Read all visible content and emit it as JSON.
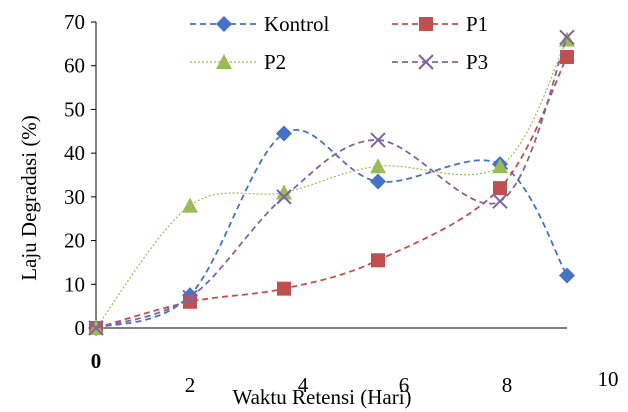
{
  "chart_data": {
    "type": "line",
    "xlabel": "Waktu Retensi (Hari)",
    "ylabel": "Laju Degradasi (%)",
    "ylim": [
      0,
      70
    ],
    "y_ticks": [
      "0",
      "10",
      "20",
      "30",
      "40",
      "50",
      "60",
      "70"
    ],
    "x_origin_label": "0",
    "x_tick_labels": [
      "2",
      "4",
      "6",
      "8",
      "10"
    ],
    "x": [
      0,
      2,
      4,
      6,
      8,
      10
    ],
    "grid": false,
    "legend_position": "top",
    "series": [
      {
        "name": "Kontrol",
        "values": [
          0,
          7.5,
          44.5,
          33.5,
          37.5,
          12
        ],
        "color": "#4472C4",
        "marker": "diamond",
        "dash": "dashed"
      },
      {
        "name": "P1",
        "values": [
          0,
          6,
          9,
          15.5,
          32,
          62
        ],
        "color": "#C0504D",
        "marker": "square",
        "dash": "dashed"
      },
      {
        "name": "P2",
        "values": [
          0,
          28,
          31,
          37,
          37,
          66
        ],
        "color": "#9BBB59",
        "marker": "triangle",
        "dash": "dotted"
      },
      {
        "name": "P3",
        "values": [
          0,
          7,
          30,
          43,
          29,
          66.5
        ],
        "color": "#8064A2",
        "marker": "x",
        "dash": "dashed"
      }
    ]
  }
}
